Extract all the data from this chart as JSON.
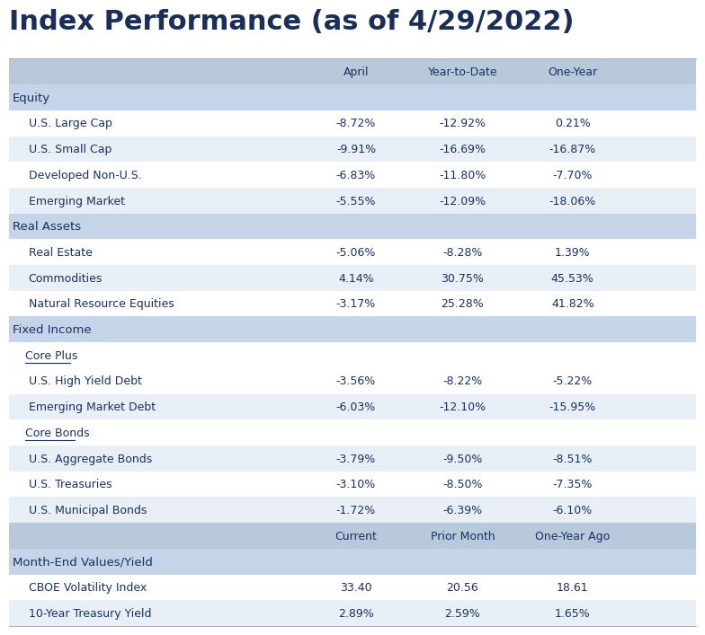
{
  "title": "Index Performance (as of 4/29/2022)",
  "title_color": "#1a2e5a",
  "title_fontsize": 22,
  "bg_color": "#ffffff",
  "section_bg": "#c5d4e8",
  "row_bg_alt": "#e8eff7",
  "row_bg_white": "#ffffff",
  "header_bg": "#b8c9dc",
  "text_color": "#1a3060",
  "rows": [
    {
      "type": "header",
      "c1": "",
      "c2": "April",
      "c3": "Year-to-Date",
      "c4": "One-Year"
    },
    {
      "type": "section",
      "c1": "Equity",
      "c2": "",
      "c3": "",
      "c4": ""
    },
    {
      "type": "data",
      "c1": "U.S. Large Cap",
      "c2": "-8.72%",
      "c3": "-12.92%",
      "c4": "0.21%"
    },
    {
      "type": "data",
      "c1": "U.S. Small Cap",
      "c2": "-9.91%",
      "c3": "-16.69%",
      "c4": "-16.87%"
    },
    {
      "type": "data",
      "c1": "Developed Non-U.S.",
      "c2": "-6.83%",
      "c3": "-11.80%",
      "c4": "-7.70%"
    },
    {
      "type": "data",
      "c1": "Emerging Market",
      "c2": "-5.55%",
      "c3": "-12.09%",
      "c4": "-18.06%"
    },
    {
      "type": "section",
      "c1": "Real Assets",
      "c2": "",
      "c3": "",
      "c4": ""
    },
    {
      "type": "data",
      "c1": "Real Estate",
      "c2": "-5.06%",
      "c3": "-8.28%",
      "c4": "1.39%"
    },
    {
      "type": "data",
      "c1": "Commodities",
      "c2": "4.14%",
      "c3": "30.75%",
      "c4": "45.53%"
    },
    {
      "type": "data",
      "c1": "Natural Resource Equities",
      "c2": "-3.17%",
      "c3": "25.28%",
      "c4": "41.82%"
    },
    {
      "type": "section",
      "c1": "Fixed Income",
      "c2": "",
      "c3": "",
      "c4": ""
    },
    {
      "type": "subheader",
      "c1": "Core Plus",
      "c2": "",
      "c3": "",
      "c4": ""
    },
    {
      "type": "data",
      "c1": "U.S. High Yield Debt",
      "c2": "-3.56%",
      "c3": "-8.22%",
      "c4": "-5.22%"
    },
    {
      "type": "data",
      "c1": "Emerging Market Debt",
      "c2": "-6.03%",
      "c3": "-12.10%",
      "c4": "-15.95%"
    },
    {
      "type": "subheader",
      "c1": "Core Bonds",
      "c2": "",
      "c3": "",
      "c4": ""
    },
    {
      "type": "data",
      "c1": "U.S. Aggregate Bonds",
      "c2": "-3.79%",
      "c3": "-9.50%",
      "c4": "-8.51%"
    },
    {
      "type": "data",
      "c1": "U.S. Treasuries",
      "c2": "-3.10%",
      "c3": "-8.50%",
      "c4": "-7.35%"
    },
    {
      "type": "data",
      "c1": "U.S. Municipal Bonds",
      "c2": "-1.72%",
      "c3": "-6.39%",
      "c4": "-6.10%"
    },
    {
      "type": "header",
      "c1": "",
      "c2": "Current",
      "c3": "Prior Month",
      "c4": "One-Year Ago"
    },
    {
      "type": "section",
      "c1": "Month-End Values/Yield",
      "c2": "",
      "c3": "",
      "c4": ""
    },
    {
      "type": "data",
      "c1": "CBOE Volatility Index",
      "c2": "33.40",
      "c3": "20.56",
      "c4": "18.61"
    },
    {
      "type": "data",
      "c1": "10-Year Treasury Yield",
      "c2": "2.89%",
      "c3": "2.59%",
      "c4": "1.65%"
    }
  ]
}
